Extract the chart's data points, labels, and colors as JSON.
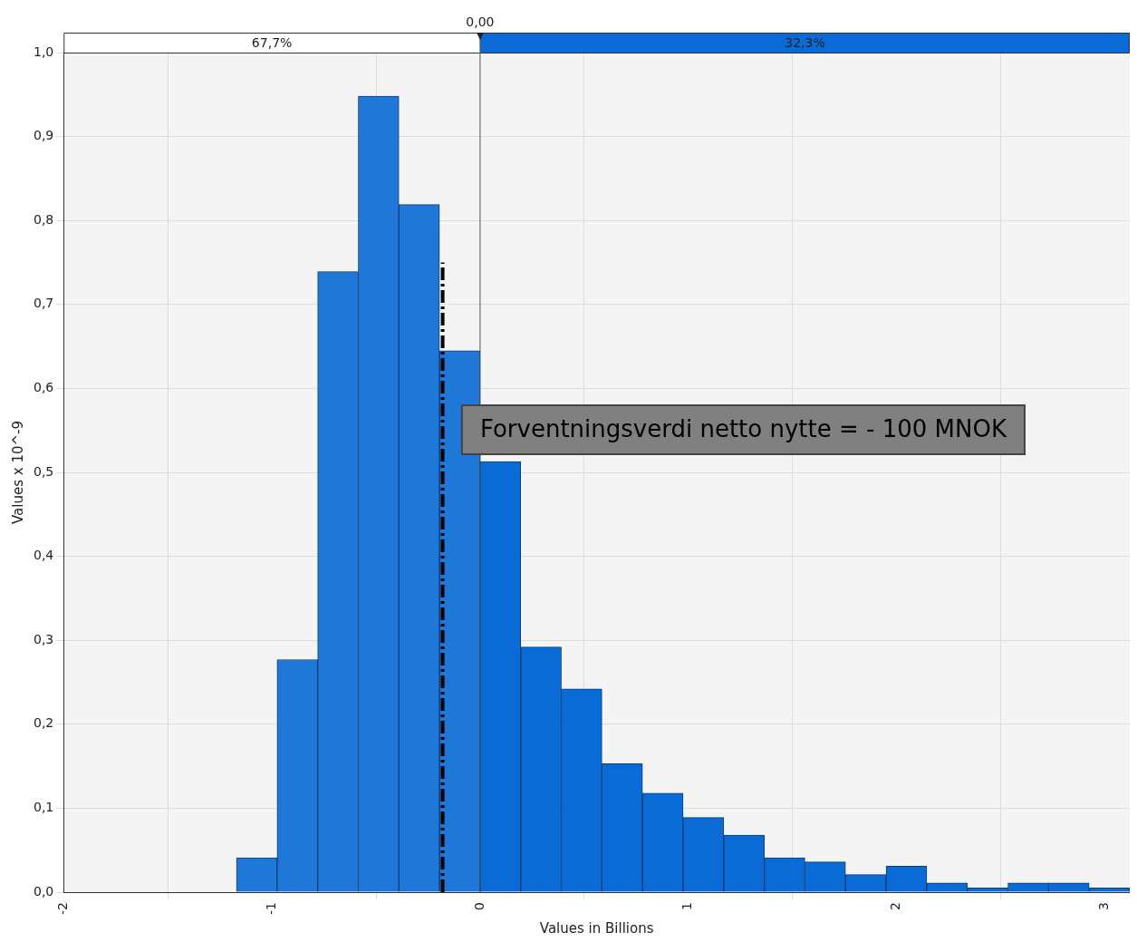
{
  "chart_data": {
    "type": "histogram",
    "xlabel": "Values in Billions",
    "ylabel": "Values x 10^-9",
    "bins": [
      -1.17,
      -0.975,
      -0.78,
      -0.585,
      -0.39,
      -0.195,
      0,
      0.195,
      0.39,
      0.585,
      0.78,
      0.975,
      1.17,
      1.365,
      1.56,
      1.755,
      1.95,
      2.145,
      2.34,
      2.535,
      2.73,
      2.925,
      3.12
    ],
    "values": [
      0.041,
      0.277,
      0.739,
      0.948,
      0.819,
      0.645,
      0.513,
      0.292,
      0.242,
      0.153,
      0.118,
      0.089,
      0.068,
      0.041,
      0.036,
      0.021,
      0.031,
      0.011,
      0.005,
      0.011,
      0.011,
      0.005
    ],
    "colors": [
      "#1f78d8",
      "#1f78d8",
      "#1f78d8",
      "#1f78d8",
      "#1f78d8",
      "#1f78d8",
      "#0a6ad6",
      "#0a6ad6",
      "#0a6ad6",
      "#0a6ad6",
      "#0a6ad6",
      "#0a6ad6",
      "#0a6ad6",
      "#0a6ad6",
      "#0a6ad6",
      "#0a6ad6",
      "#0a6ad6",
      "#0a6ad6",
      "#0a6ad6",
      "#0a6ad6",
      "#0a6ad6",
      "#0a6ad6"
    ],
    "xlim": [
      -2,
      3.12
    ],
    "xticks": [
      -2,
      -1,
      0,
      1,
      2,
      3
    ],
    "ylim": [
      0,
      1.0
    ],
    "yticks": [
      {
        "value": 0,
        "label": "0,0"
      },
      {
        "value": 0.1,
        "label": "0,1"
      },
      {
        "value": 0.2,
        "label": "0,2"
      },
      {
        "value": 0.3,
        "label": "0,3"
      },
      {
        "value": 0.4,
        "label": "0,4"
      },
      {
        "value": 0.5,
        "label": "0,5"
      },
      {
        "value": 0.6,
        "label": "0,6"
      },
      {
        "value": 0.7,
        "label": "0,7"
      },
      {
        "value": 0.8,
        "label": "0,8"
      },
      {
        "value": 0.9,
        "label": "0,9"
      },
      {
        "value": 1.0,
        "label": "1,0"
      }
    ],
    "grid": true,
    "ref_lines": [
      {
        "axis": "x",
        "value": 0,
        "label": "0,00",
        "color": "#555555"
      },
      {
        "axis": "x",
        "value": -0.18,
        "label": "Forventningsverdi netto nytte = - 100 MNOK",
        "color": "#000000",
        "line_style": "dashed"
      }
    ],
    "annotations": [
      "67,7%",
      "32,3%"
    ]
  }
}
